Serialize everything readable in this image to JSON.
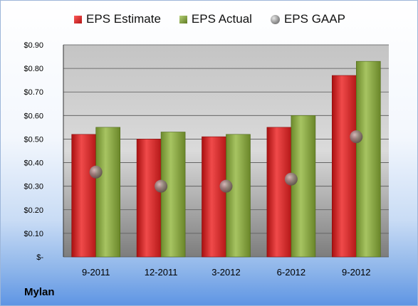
{
  "chart_data": {
    "type": "bar",
    "categories": [
      "9-2011",
      "12-2011",
      "3-2012",
      "6-2012",
      "9-2012"
    ],
    "series": [
      {
        "name": "EPS Estimate",
        "kind": "bar",
        "color": "#d42a2a",
        "values": [
          0.52,
          0.5,
          0.51,
          0.55,
          0.77
        ]
      },
      {
        "name": "EPS Actual",
        "kind": "bar",
        "color": "#8fae4a",
        "values": [
          0.55,
          0.53,
          0.52,
          0.6,
          0.83
        ]
      },
      {
        "name": "EPS GAAP",
        "kind": "marker",
        "color": "#8b8b8b",
        "values": [
          0.36,
          0.3,
          0.3,
          0.33,
          0.51
        ]
      }
    ],
    "ylim": [
      0,
      0.9
    ],
    "yticks": [
      0,
      0.1,
      0.2,
      0.3,
      0.4,
      0.5,
      0.6,
      0.7,
      0.8,
      0.9
    ],
    "ytick_labels": [
      "$-",
      "$0.10",
      "$0.20",
      "$0.30",
      "$0.40",
      "$0.50",
      "$0.60",
      "$0.70",
      "$0.80",
      "$0.90"
    ],
    "grid": true,
    "legend": "top-center"
  },
  "legend": {
    "estimate": "EPS Estimate",
    "actual": "EPS Actual",
    "gaap": "EPS GAAP"
  },
  "company": "Mylan"
}
